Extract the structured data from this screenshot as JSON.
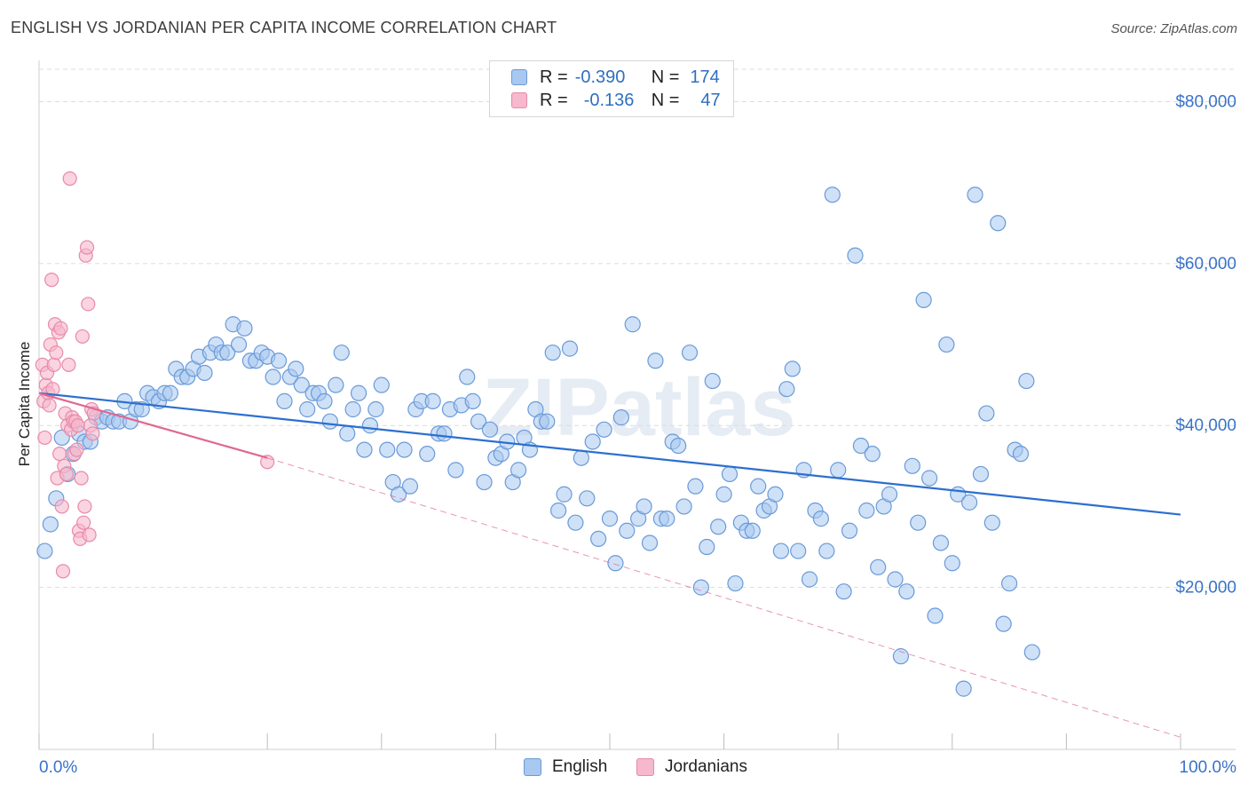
{
  "title": "ENGLISH VS JORDANIAN PER CAPITA INCOME CORRELATION CHART",
  "source": "Source: ZipAtlas.com",
  "watermark": "ZIPatlas",
  "legend": {
    "rows": [
      {
        "r_label": "R =",
        "r_value": "-0.390",
        "n_label": "N =",
        "n_value": "174"
      },
      {
        "r_label": "R =",
        "r_value": "-0.136",
        "n_label": "N =",
        "n_value": "47"
      }
    ]
  },
  "bottom_legend": [
    "English",
    "Jordanians"
  ],
  "colors": {
    "english_fill": "#a8c8f0",
    "english_stroke": "#6a9ad8",
    "english_line": "#2c6fd0",
    "jordanian_fill": "#f6b8cc",
    "jordanian_stroke": "#e88aa8",
    "jordanian_line": "#e06890",
    "axis_label": "#3a72c8",
    "grid": "#dcdcdc"
  },
  "chart_data": {
    "type": "scatter",
    "title": "ENGLISH VS JORDANIAN PER CAPITA INCOME CORRELATION CHART",
    "xlabel": "",
    "ylabel": "Per Capita Income",
    "xlim": [
      0,
      100
    ],
    "ylim": [
      0,
      84000
    ],
    "x_tick_labels": [
      "0.0%",
      "100.0%"
    ],
    "y_ticks": [
      20000,
      40000,
      60000,
      80000
    ],
    "y_tick_labels": [
      "$20,000",
      "$40,000",
      "$60,000",
      "$80,000"
    ],
    "series": [
      {
        "name": "English",
        "R": -0.39,
        "N": 174,
        "trend": {
          "x": [
            0,
            100
          ],
          "y": [
            44000,
            29000
          ]
        },
        "points": [
          [
            0.5,
            24500
          ],
          [
            1.0,
            27800
          ],
          [
            1.5,
            31000
          ],
          [
            2.0,
            38500
          ],
          [
            2.5,
            34000
          ],
          [
            3.0,
            36500
          ],
          [
            3.5,
            39000
          ],
          [
            4.0,
            38000
          ],
          [
            4.5,
            38000
          ],
          [
            5.0,
            41000
          ],
          [
            5.5,
            40500
          ],
          [
            6.0,
            41000
          ],
          [
            6.5,
            40500
          ],
          [
            7.0,
            40500
          ],
          [
            7.5,
            43000
          ],
          [
            8.0,
            40500
          ],
          [
            8.5,
            42000
          ],
          [
            9.0,
            42000
          ],
          [
            9.5,
            44000
          ],
          [
            10.0,
            43500
          ],
          [
            10.5,
            43000
          ],
          [
            11.0,
            44000
          ],
          [
            11.5,
            44000
          ],
          [
            12.0,
            47000
          ],
          [
            12.5,
            46000
          ],
          [
            13.0,
            46000
          ],
          [
            13.5,
            47000
          ],
          [
            14.0,
            48500
          ],
          [
            14.5,
            46500
          ],
          [
            15.0,
            49000
          ],
          [
            15.5,
            50000
          ],
          [
            16.0,
            49000
          ],
          [
            16.5,
            49000
          ],
          [
            17.0,
            52500
          ],
          [
            17.5,
            50000
          ],
          [
            18.0,
            52000
          ],
          [
            18.5,
            48000
          ],
          [
            19.0,
            48000
          ],
          [
            19.5,
            49000
          ],
          [
            20.0,
            48500
          ],
          [
            20.5,
            46000
          ],
          [
            21.0,
            48000
          ],
          [
            21.5,
            43000
          ],
          [
            22.0,
            46000
          ],
          [
            22.5,
            47000
          ],
          [
            23.0,
            45000
          ],
          [
            23.5,
            42000
          ],
          [
            24.0,
            44000
          ],
          [
            24.5,
            44000
          ],
          [
            25.0,
            43000
          ],
          [
            25.5,
            40500
          ],
          [
            26.0,
            45000
          ],
          [
            26.5,
            49000
          ],
          [
            27.0,
            39000
          ],
          [
            27.5,
            42000
          ],
          [
            28.0,
            44000
          ],
          [
            28.5,
            37000
          ],
          [
            29.0,
            40000
          ],
          [
            29.5,
            42000
          ],
          [
            30.0,
            45000
          ],
          [
            30.5,
            37000
          ],
          [
            31.0,
            33000
          ],
          [
            31.5,
            31500
          ],
          [
            32.0,
            37000
          ],
          [
            32.5,
            32500
          ],
          [
            33.0,
            42000
          ],
          [
            33.5,
            43000
          ],
          [
            34.0,
            36500
          ],
          [
            34.5,
            43000
          ],
          [
            35.0,
            39000
          ],
          [
            35.5,
            39000
          ],
          [
            36.0,
            42000
          ],
          [
            36.5,
            34500
          ],
          [
            37.0,
            42500
          ],
          [
            37.5,
            46000
          ],
          [
            38.0,
            43000
          ],
          [
            38.5,
            40500
          ],
          [
            39.0,
            33000
          ],
          [
            39.5,
            39500
          ],
          [
            40.0,
            36000
          ],
          [
            40.5,
            36500
          ],
          [
            41.0,
            38000
          ],
          [
            41.5,
            33000
          ],
          [
            42.0,
            34500
          ],
          [
            42.5,
            38500
          ],
          [
            43.0,
            37000
          ],
          [
            43.5,
            42000
          ],
          [
            44.0,
            40500
          ],
          [
            44.5,
            40500
          ],
          [
            45.0,
            49000
          ],
          [
            45.5,
            29500
          ],
          [
            46.0,
            31500
          ],
          [
            46.5,
            49500
          ],
          [
            47.0,
            28000
          ],
          [
            47.5,
            36000
          ],
          [
            48.0,
            31000
          ],
          [
            48.5,
            38000
          ],
          [
            49.0,
            26000
          ],
          [
            49.5,
            39500
          ],
          [
            50.0,
            28500
          ],
          [
            50.5,
            23000
          ],
          [
            51.0,
            41000
          ],
          [
            51.5,
            27000
          ],
          [
            52.0,
            52500
          ],
          [
            52.5,
            28500
          ],
          [
            53.0,
            30000
          ],
          [
            53.5,
            25500
          ],
          [
            54.0,
            48000
          ],
          [
            54.5,
            28500
          ],
          [
            55.0,
            28500
          ],
          [
            55.5,
            38000
          ],
          [
            56.0,
            37500
          ],
          [
            56.5,
            30000
          ],
          [
            57.0,
            49000
          ],
          [
            57.5,
            32500
          ],
          [
            58.0,
            20000
          ],
          [
            58.5,
            25000
          ],
          [
            59.0,
            45500
          ],
          [
            59.5,
            27500
          ],
          [
            60.0,
            31500
          ],
          [
            60.5,
            34000
          ],
          [
            61.0,
            20500
          ],
          [
            61.5,
            28000
          ],
          [
            62.0,
            27000
          ],
          [
            62.5,
            27000
          ],
          [
            63.0,
            32500
          ],
          [
            63.5,
            29500
          ],
          [
            64.0,
            30000
          ],
          [
            64.5,
            31500
          ],
          [
            65.0,
            24500
          ],
          [
            65.5,
            44500
          ],
          [
            66.0,
            47000
          ],
          [
            66.5,
            24500
          ],
          [
            67.0,
            34500
          ],
          [
            67.5,
            21000
          ],
          [
            68.0,
            29500
          ],
          [
            68.5,
            28500
          ],
          [
            69.0,
            24500
          ],
          [
            69.5,
            68500
          ],
          [
            70.0,
            34500
          ],
          [
            70.5,
            19500
          ],
          [
            71.0,
            27000
          ],
          [
            71.5,
            61000
          ],
          [
            72.0,
            37500
          ],
          [
            72.5,
            29500
          ],
          [
            73.0,
            36500
          ],
          [
            73.5,
            22500
          ],
          [
            74.0,
            30000
          ],
          [
            74.5,
            31500
          ],
          [
            75.0,
            21000
          ],
          [
            75.5,
            11500
          ],
          [
            76.0,
            19500
          ],
          [
            76.5,
            35000
          ],
          [
            77.0,
            28000
          ],
          [
            77.5,
            55500
          ],
          [
            78.0,
            33500
          ],
          [
            78.5,
            16500
          ],
          [
            79.0,
            25500
          ],
          [
            79.5,
            50000
          ],
          [
            80.0,
            23000
          ],
          [
            80.5,
            31500
          ],
          [
            81.0,
            7500
          ],
          [
            81.5,
            30500
          ],
          [
            82.0,
            68500
          ],
          [
            82.5,
            34000
          ],
          [
            83.0,
            41500
          ],
          [
            83.5,
            28000
          ],
          [
            84.0,
            65000
          ],
          [
            84.5,
            15500
          ],
          [
            85.0,
            20500
          ],
          [
            85.5,
            37000
          ],
          [
            86.0,
            36500
          ],
          [
            86.5,
            45500
          ],
          [
            87.0,
            12000
          ]
        ]
      },
      {
        "name": "Jordanians",
        "R": -0.136,
        "N": 47,
        "trend": {
          "x": [
            0,
            20
          ],
          "y": [
            44000,
            36000
          ]
        },
        "trend_extension": {
          "x": [
            20,
            100
          ],
          "y": [
            36000,
            1500
          ]
        },
        "points": [
          [
            0.3,
            47500
          ],
          [
            0.4,
            43000
          ],
          [
            0.5,
            38500
          ],
          [
            0.6,
            45000
          ],
          [
            0.7,
            46500
          ],
          [
            0.8,
            44000
          ],
          [
            0.9,
            42500
          ],
          [
            1.0,
            50000
          ],
          [
            1.1,
            58000
          ],
          [
            1.2,
            44500
          ],
          [
            1.3,
            47500
          ],
          [
            1.4,
            52500
          ],
          [
            1.5,
            49000
          ],
          [
            1.6,
            33500
          ],
          [
            1.7,
            51500
          ],
          [
            1.8,
            36500
          ],
          [
            1.9,
            52000
          ],
          [
            2.0,
            30000
          ],
          [
            2.1,
            22000
          ],
          [
            2.2,
            35000
          ],
          [
            2.3,
            41500
          ],
          [
            2.4,
            34000
          ],
          [
            2.5,
            40000
          ],
          [
            2.6,
            47500
          ],
          [
            2.7,
            70500
          ],
          [
            2.8,
            39500
          ],
          [
            2.9,
            41000
          ],
          [
            3.0,
            40500
          ],
          [
            3.1,
            36500
          ],
          [
            3.2,
            40500
          ],
          [
            3.3,
            37000
          ],
          [
            3.4,
            40000
          ],
          [
            3.5,
            27000
          ],
          [
            3.6,
            26000
          ],
          [
            3.7,
            33500
          ],
          [
            3.8,
            51000
          ],
          [
            3.9,
            28000
          ],
          [
            4.0,
            30000
          ],
          [
            4.1,
            61000
          ],
          [
            4.2,
            62000
          ],
          [
            4.3,
            55000
          ],
          [
            4.4,
            26500
          ],
          [
            4.5,
            40000
          ],
          [
            4.6,
            42000
          ],
          [
            4.7,
            39000
          ],
          [
            4.8,
            41500
          ],
          [
            20.0,
            35500
          ]
        ]
      }
    ]
  }
}
